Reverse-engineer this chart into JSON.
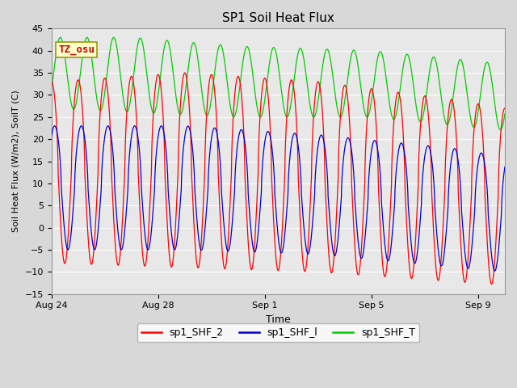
{
  "title": "SP1 Soil Heat Flux",
  "xlabel": "Time",
  "ylabel": "Soil Heat Flux (W/m2), SoilT (C)",
  "ylim": [
    -15,
    45
  ],
  "yticks": [
    -15,
    -10,
    -5,
    0,
    5,
    10,
    15,
    20,
    25,
    30,
    35,
    40,
    45
  ],
  "bg_color": "#e8e8e8",
  "fig_color": "#d8d8d8",
  "line_colors": {
    "SHF2": "#ff0000",
    "SHF1": "#0000cc",
    "SHFT": "#00cc00"
  },
  "legend_labels": [
    "sp1_SHF_2",
    "sp1_SHF_l",
    "sp1_SHF_T"
  ],
  "annotation_text": "TZ_osu",
  "annotation_bg": "#ffffcc",
  "annotation_fg": "#cc0000",
  "xtick_positions": [
    0,
    4,
    8,
    12,
    16
  ],
  "xtick_labels": [
    "Aug 24",
    "Aug 28",
    "Sep 1",
    "Sep 5",
    "Sep 9"
  ],
  "xlim": [
    0,
    17
  ]
}
